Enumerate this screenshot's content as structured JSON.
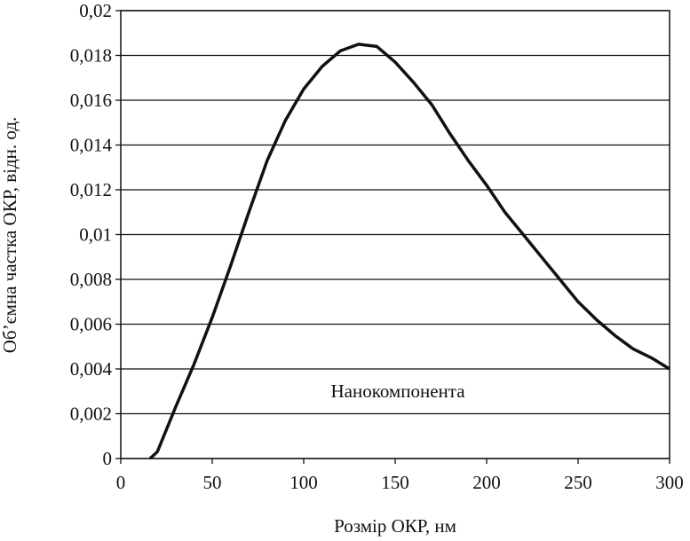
{
  "chart_data": {
    "type": "line",
    "x_label": "Розмір ОКР, нм",
    "y_label": "Об’ємна частка ОКР, відн. од.",
    "annotation": "Нанокомпонента",
    "x": [
      16,
      20,
      30,
      40,
      50,
      60,
      70,
      80,
      90,
      100,
      110,
      120,
      130,
      140,
      150,
      160,
      170,
      180,
      190,
      200,
      210,
      220,
      230,
      240,
      250,
      260,
      270,
      280,
      290,
      300
    ],
    "series": [
      {
        "name": "Нанокомпонента",
        "color": "#111111",
        "values": [
          0,
          0.0003,
          0.0023,
          0.0042,
          0.0063,
          0.0086,
          0.011,
          0.0133,
          0.0151,
          0.0165,
          0.0175,
          0.0182,
          0.0185,
          0.0184,
          0.0177,
          0.0168,
          0.0158,
          0.0145,
          0.0133,
          0.0122,
          0.011,
          0.01,
          0.009,
          0.008,
          0.007,
          0.0062,
          0.0055,
          0.0049,
          0.0045,
          0.004
        ]
      }
    ],
    "xlim": [
      0,
      300
    ],
    "xticks": [
      0,
      50,
      100,
      150,
      200,
      250,
      300
    ],
    "ylim": [
      0,
      0.02
    ],
    "yticks": [
      0,
      {
        "value": 0.002,
        "label": "0,002"
      },
      {
        "value": 0.004,
        "label": "0,004"
      },
      {
        "value": 0.006,
        "label": "0,006"
      },
      {
        "value": 0.008,
        "label": "0,008"
      },
      {
        "value": 0.01,
        "label": "0,01"
      },
      {
        "value": 0.012,
        "label": "0,012"
      },
      {
        "value": 0.014,
        "label": "0,014"
      },
      {
        "value": 0.016,
        "label": "0,016"
      },
      {
        "value": 0.018,
        "label": "0,018"
      },
      {
        "value": 0.02,
        "label": "0,02"
      }
    ],
    "grid": true
  }
}
